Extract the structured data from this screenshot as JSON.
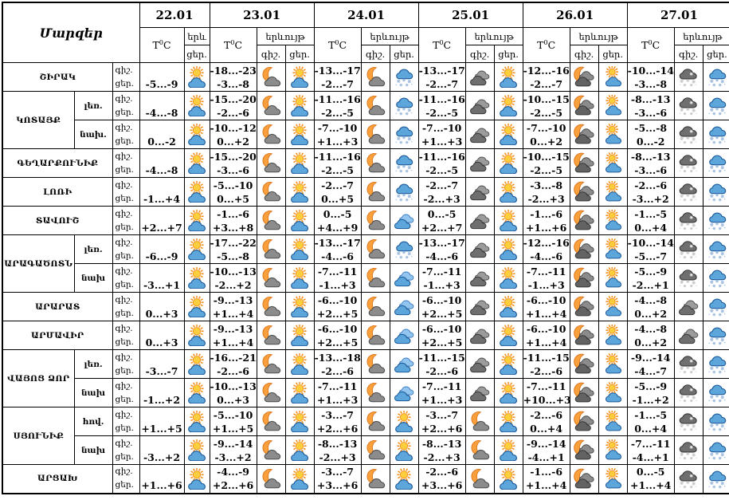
{
  "header": {
    "regions_title": "Մարզեր",
    "dates": [
      "22.01",
      "23.01",
      "24.01",
      "25.01",
      "26.01",
      "27.01"
    ],
    "temp_label": {
      "base": "T",
      "sup": "0",
      "unit": "C"
    },
    "phenomenon_label": "երևույթ",
    "phenomenon_short": "երև",
    "night_label": "գիշ.",
    "day_label": "ցեր."
  },
  "colors": {
    "sun": "#F4901E",
    "sun_core": "#FFCE3C",
    "moon": "#F9A03C",
    "moon_outline": "#D9731A",
    "blue_cloud": "#5CA6DB",
    "blue_cloud_outline": "#1D5A99",
    "gray_cloud": "#8C8C8C",
    "dark_cloud": "#6F6F6F",
    "dark_cloud_outline": "#3A3A3A",
    "snow_blue": "#9FBCDE",
    "snow_gray": "#C8C8C8",
    "border": "#000000"
  },
  "regions": [
    {
      "name": "ՇԻՐԱԿ",
      "rows": [
        {
          "sub": null,
          "d1": "-5...-9",
          "d1i": "partly-sunny",
          "days": [
            [
              "-18...-23",
              "-3...-8",
              "moon-cloud",
              "partly-sunny"
            ],
            [
              "-13...-17",
              "-2...-7",
              "moon-cloud",
              "snow-blue-cloud"
            ],
            [
              "-13...-17",
              "-2...-7",
              "dark-clouds",
              "partly-sunny"
            ],
            [
              "-12...-16",
              "-2...-7",
              "moon-dark-clouds",
              "partly-sunny-sm"
            ],
            [
              "-10...-14",
              "-3...-8",
              "snow-dark-cloud",
              "snow-blue-cloud"
            ]
          ]
        }
      ]
    },
    {
      "name": "ԿՈՏԱՅՔ",
      "rows": [
        {
          "sub": "լեռ.",
          "d1": "-4...-8",
          "d1i": "partly-sunny",
          "days": [
            [
              "-15...-20",
              "-2...-6",
              "moon-cloud",
              "partly-sunny"
            ],
            [
              "-11...-16",
              "-2...-5",
              "moon-cloud",
              "snow-blue-cloud"
            ],
            [
              "-11...-16",
              "-2...-5",
              "dark-clouds",
              "partly-sunny"
            ],
            [
              "-10...-15",
              "-2...-5",
              "moon-dark-clouds",
              "partly-sunny-sm"
            ],
            [
              "-8...-13",
              "-3...-6",
              "snow-dark-cloud",
              "snow-blue-cloud"
            ]
          ]
        },
        {
          "sub": "նախ.",
          "d1": "0...-2",
          "d1i": "partly-sunny",
          "days": [
            [
              "-10...-12",
              "0...+2",
              "moon-cloud",
              "partly-sunny"
            ],
            [
              "-7...-10",
              "+1...+3",
              "moon-cloud",
              "snow-blue-cloud"
            ],
            [
              "-7...-10",
              "+1...+3",
              "dark-clouds",
              "partly-sunny"
            ],
            [
              "-7...-10",
              "0...+2",
              "moon-dark-clouds",
              "partly-sunny-sm"
            ],
            [
              "-5...-8",
              "0...-2",
              "snow-dark-cloud",
              "snow-blue-cloud"
            ]
          ]
        }
      ]
    },
    {
      "name": "ԳԵՂԱՐՔՈՒՆԻՔ",
      "rows": [
        {
          "sub": null,
          "d1": "-4...-8",
          "d1i": "partly-sunny",
          "days": [
            [
              "-15...-20",
              "-3...-6",
              "moon-cloud",
              "partly-sunny"
            ],
            [
              "-11...-16",
              "-2...-5",
              "moon-cloud",
              "snow-blue-cloud"
            ],
            [
              "-11...-16",
              "-2...-5",
              "dark-clouds",
              "partly-sunny"
            ],
            [
              "-10...-15",
              "-2...-5",
              "moon-dark-clouds",
              "partly-sunny-sm"
            ],
            [
              "-8...-13",
              "-3...-6",
              "snow-dark-cloud",
              "snow-blue-cloud"
            ]
          ]
        }
      ]
    },
    {
      "name": "ԼՈՌԻ",
      "rows": [
        {
          "sub": null,
          "d1": "-1...+4",
          "d1i": "partly-sunny",
          "days": [
            [
              "-5...-10",
              "0...+5",
              "moon-cloud",
              "partly-sunny"
            ],
            [
              "-2...-7",
              "0...+5",
              "moon-cloud",
              "snow-blue-cloud"
            ],
            [
              "-2...-7",
              "-2...+3",
              "dark-clouds",
              "partly-sunny"
            ],
            [
              "-3...-8",
              "-2...+3",
              "moon-dark-clouds",
              "partly-sunny-sm"
            ],
            [
              "-2...-6",
              "-3...+2",
              "snow-dark-cloud",
              "snow-blue-cloud"
            ]
          ]
        }
      ]
    },
    {
      "name": "ՏԱՎՈՒՇ",
      "rows": [
        {
          "sub": null,
          "d1": "+2...+7",
          "d1i": "partly-sunny",
          "days": [
            [
              "-1...-6",
              "+3...+8",
              "moon-cloud",
              "partly-sunny"
            ],
            [
              "0...-5",
              "+4...+9",
              "moon-cloud",
              "blue-clouds"
            ],
            [
              "0...-5",
              "+2...+7",
              "dark-clouds",
              "partly-sunny"
            ],
            [
              "-1...-6",
              "+1...+6",
              "moon-dark-clouds",
              "partly-sunny-sm"
            ],
            [
              "-1...-5",
              "0...+4",
              "snow-dark-cloud",
              "snow-blue-cloud"
            ]
          ]
        }
      ]
    },
    {
      "name": "ԱՐԱԳԱԾՈՏՆ",
      "rows": [
        {
          "sub": "լեռ.",
          "d1": "-6...-9",
          "d1i": "partly-sunny",
          "days": [
            [
              "-17...-22",
              "-5...-8",
              "moon-cloud",
              "partly-sunny"
            ],
            [
              "-13...-17",
              "-4...-6",
              "moon-cloud",
              "snow-blue-cloud"
            ],
            [
              "-13...-17",
              "-4...-6",
              "dark-clouds",
              "partly-sunny"
            ],
            [
              "-12...-16",
              "-4...-6",
              "moon-dark-clouds",
              "partly-sunny-sm"
            ],
            [
              "-10...-14",
              "-5...-7",
              "snow-dark-cloud",
              "snow-blue-cloud"
            ]
          ]
        },
        {
          "sub": "նախ",
          "d1": "-3...+1",
          "d1i": "partly-sunny",
          "days": [
            [
              "-10...-13",
              "-2...+2",
              "moon-cloud",
              "partly-sunny"
            ],
            [
              "-7...-11",
              "-1...+3",
              "moon-cloud",
              "blue-clouds"
            ],
            [
              "-7...-11",
              "-1...+3",
              "dark-clouds",
              "partly-sunny"
            ],
            [
              "-7...-11",
              "-1...+3",
              "moon-dark-clouds",
              "partly-sunny-sm"
            ],
            [
              "-5...-9",
              "-2...+1",
              "snow-dark-cloud",
              "snow-blue-cloud"
            ]
          ]
        }
      ]
    },
    {
      "name": "ԱՐԱՐԱՏ",
      "rows": [
        {
          "sub": null,
          "d1": "0...+3",
          "d1i": "partly-sunny",
          "days": [
            [
              "-9...-13",
              "+1...+4",
              "moon-cloud",
              "partly-sunny"
            ],
            [
              "-6...-10",
              "+2...+5",
              "moon-cloud",
              "blue-clouds"
            ],
            [
              "-6...-10",
              "+2...+5",
              "dark-clouds",
              "partly-sunny"
            ],
            [
              "-6...-10",
              "+1...+4",
              "moon-dark-clouds",
              "partly-sunny-sm"
            ],
            [
              "-4...-8",
              "0...+2",
              "dark-clouds",
              "snow-blue-cloud"
            ]
          ]
        }
      ]
    },
    {
      "name": "ԱՐՄԱՎԻՐ",
      "rows": [
        {
          "sub": null,
          "d1": "0...+3",
          "d1i": "partly-sunny",
          "days": [
            [
              "-9...-13",
              "+1...+4",
              "moon-cloud",
              "partly-sunny"
            ],
            [
              "-6...-10",
              "+2...+5",
              "moon-cloud",
              "blue-clouds"
            ],
            [
              "-6...-10",
              "+2...+5",
              "dark-clouds",
              "partly-sunny"
            ],
            [
              "-6...-10",
              "+1...+4",
              "moon-dark-clouds",
              "partly-sunny-sm"
            ],
            [
              "-4...-8",
              "0...+2",
              "dark-clouds",
              "snow-blue-cloud"
            ]
          ]
        }
      ]
    },
    {
      "name": "ՎԱՅՈՑ ՁՈՐ",
      "rows": [
        {
          "sub": "լեռ.",
          "d1": "-3...-7",
          "d1i": "partly-sunny",
          "days": [
            [
              "-16...-21",
              "-2...-6",
              "moon-cloud",
              "partly-sunny"
            ],
            [
              "-13...-18",
              "-2...-6",
              "moon-cloud",
              "blue-clouds"
            ],
            [
              "-11...-15",
              "-2...-6",
              "dark-clouds",
              "partly-sunny"
            ],
            [
              "-11...-15",
              "-2...-6",
              "moon-dark-clouds",
              "partly-sunny-sm"
            ],
            [
              "-9...-14",
              "-4...-7",
              "snow-dark-cloud",
              "snow-blue-cloud"
            ]
          ]
        },
        {
          "sub": "նախ",
          "d1": "-1...+2",
          "d1i": "partly-sunny",
          "days": [
            [
              "-10...-13",
              "0...+3",
              "moon-cloud",
              "partly-sunny"
            ],
            [
              "-7...-11",
              "+1...+3",
              "moon-cloud",
              "blue-clouds"
            ],
            [
              "-7...-11",
              "+1...+3",
              "dark-clouds",
              "partly-sunny"
            ],
            [
              "-7...-11",
              "+10...+3",
              "moon-dark-clouds",
              "partly-sunny-sm"
            ],
            [
              "-5...-9",
              "-1...+2",
              "snow-dark-cloud",
              "snow-blue-cloud"
            ]
          ]
        }
      ]
    },
    {
      "name": "ՍՅՈՒՆԻՔ",
      "rows": [
        {
          "sub": "հով.",
          "d1": "+1...+5",
          "d1i": "partly-sunny",
          "days": [
            [
              "-5...-10",
              "+1...+5",
              "moon-cloud",
              "partly-sunny"
            ],
            [
              "-3...-7",
              "+2...+6",
              "moon-cloud",
              "partly-sunny"
            ],
            [
              "-3...-7",
              "+2...+6",
              "moon-cloud",
              "partly-sunny"
            ],
            [
              "-2...-6",
              "0...+4",
              "moon-dark-clouds",
              "partly-sunny-sm"
            ],
            [
              "-1...-5",
              "0...+4",
              "snow-dark-cloud",
              "snow-blue-cloud"
            ]
          ]
        },
        {
          "sub": "նախ",
          "d1": "-3...+2",
          "d1i": "partly-sunny",
          "days": [
            [
              "-9...-14",
              "-3...+2",
              "moon-cloud",
              "partly-sunny"
            ],
            [
              "-8...-13",
              "-2...+3",
              "moon-cloud",
              "partly-sunny"
            ],
            [
              "-8...-13",
              "-2...+3",
              "moon-cloud",
              "partly-sunny"
            ],
            [
              "-9...-14",
              "-4...+1",
              "moon-dark-clouds",
              "partly-sunny-sm"
            ],
            [
              "-7...-11",
              "-4...+1",
              "snow-dark-cloud",
              "snow-blue-cloud"
            ]
          ]
        }
      ]
    },
    {
      "name": "ԱՐՑԱԽ",
      "rows": [
        {
          "sub": null,
          "d1": "+1...+6",
          "d1i": "partly-sunny",
          "days": [
            [
              "-4...-9",
              "+2...+6",
              "moon-cloud",
              "partly-sunny"
            ],
            [
              "-3...-7",
              "+3...+6",
              "moon-cloud",
              "partly-sunny"
            ],
            [
              "-2...-6",
              "+3...+6",
              "moon-cloud",
              "partly-sunny"
            ],
            [
              "-1...-6",
              "+1...+4",
              "moon-dark-clouds",
              "partly-sunny-sm"
            ],
            [
              "0...-5",
              "+1...+4",
              "snow-dark-cloud",
              "snow-blue-cloud"
            ]
          ]
        }
      ]
    }
  ]
}
